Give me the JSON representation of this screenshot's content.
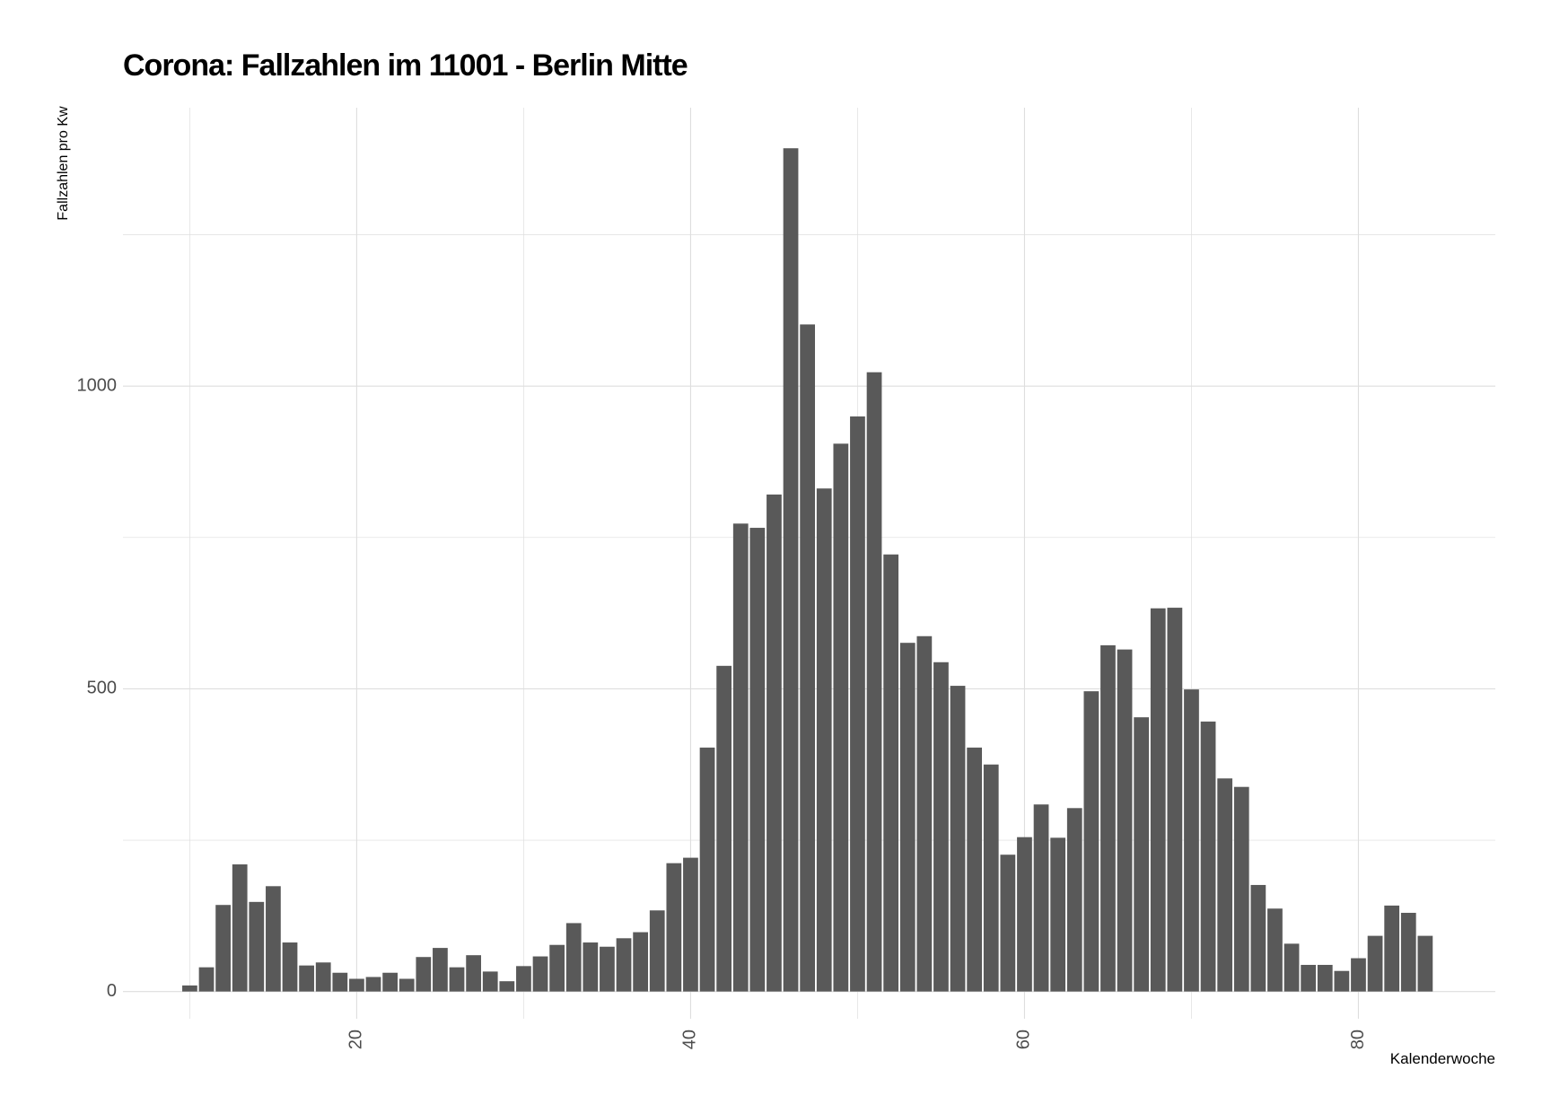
{
  "chart_data": {
    "type": "bar",
    "title": "Corona: Fallzahlen im 11001 - Berlin Mitte",
    "xlabel": "Kalenderwoche",
    "ylabel": "Fallzahlen pro Kw",
    "x_ticks": [
      20,
      40,
      60,
      80
    ],
    "y_ticks": [
      0,
      500,
      1000
    ],
    "xlim": [
      6,
      88.2
    ],
    "ylim": [
      -45,
      1460
    ],
    "grid": true,
    "legend": "none",
    "colors": {
      "bar": "#595959",
      "grid": "#dedede",
      "tick_text": "#4d4d4d"
    },
    "x": [
      10,
      11,
      12,
      13,
      14,
      15,
      16,
      17,
      18,
      19,
      20,
      21,
      22,
      23,
      24,
      25,
      26,
      27,
      28,
      29,
      30,
      31,
      32,
      33,
      34,
      35,
      36,
      37,
      38,
      39,
      40,
      41,
      42,
      43,
      44,
      45,
      46,
      47,
      48,
      49,
      50,
      51,
      52,
      53,
      54,
      55,
      56,
      57,
      58,
      59,
      60,
      61,
      62,
      63,
      64,
      65,
      66,
      67,
      68,
      69,
      70,
      71,
      72,
      73,
      74,
      75,
      76,
      77,
      78,
      79,
      80,
      81,
      82,
      83,
      84
    ],
    "values": [
      10,
      40,
      143,
      210,
      148,
      174,
      81,
      43,
      48,
      31,
      21,
      24,
      31,
      21,
      57,
      72,
      40,
      60,
      33,
      17,
      42,
      58,
      77,
      113,
      81,
      74,
      88,
      98,
      134,
      212,
      221,
      403,
      538,
      773,
      766,
      821,
      1393,
      1102,
      831,
      905,
      950,
      1023,
      722,
      576,
      587,
      544,
      505,
      403,
      375,
      226,
      255,
      309,
      254,
      303,
      496,
      572,
      565,
      453,
      633,
      634,
      499,
      446,
      352,
      338,
      176,
      137,
      79,
      44,
      44,
      34,
      55,
      92,
      142,
      130,
      92
    ]
  }
}
